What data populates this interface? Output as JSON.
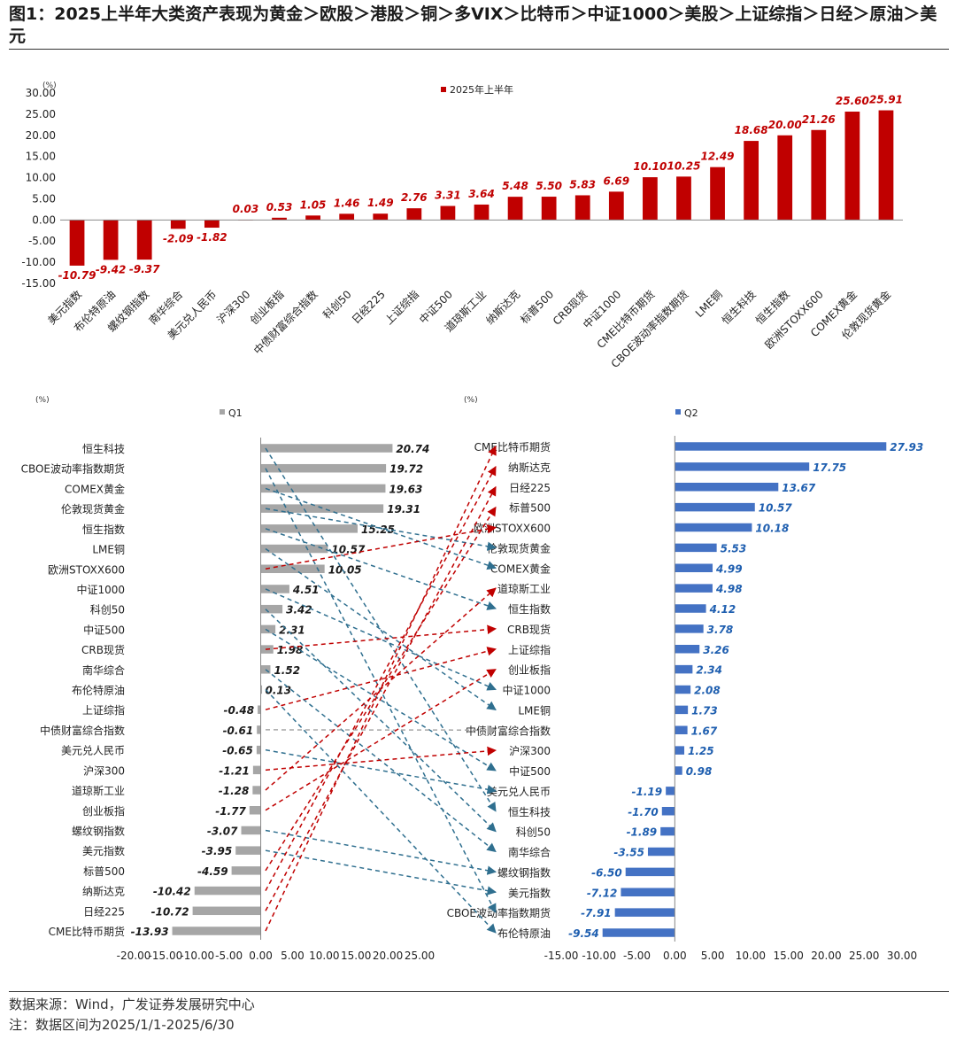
{
  "figure": {
    "title": "图1：2025上半年大类资产表现为黄金＞欧股＞港股＞铜＞多VIX＞比特币＞中证1000＞美股＞上证综指＞日经＞原油＞美元",
    "source": "数据来源：Wind，广发证券发展研究中心",
    "note": "注：数据区间为2025/1/1-2025/6/30"
  },
  "chart_data": [
    {
      "type": "bar",
      "unit": "(%)",
      "categories": [
        "美元指数",
        "布伦特原油",
        "螺纹钢指数",
        "南华综合",
        "美元兑人民币",
        "沪深300",
        "创业板指",
        "中债财富综合指数",
        "科创50",
        "日经225",
        "上证综指",
        "中证500",
        "道琼斯工业",
        "纳斯达克",
        "标普500",
        "CRB现货",
        "中证1000",
        "CME比特币期货",
        "CBOE波动率指数期货",
        "LME铜",
        "恒生科技",
        "恒生指数",
        "欧洲STOXX600",
        "COMEX黄金",
        "伦敦现货黄金"
      ],
      "series": [
        {
          "name": "2025年上半年",
          "color": "#c00000",
          "values": [
            -10.79,
            -9.42,
            -9.37,
            -2.09,
            -1.82,
            0.03,
            0.53,
            1.05,
            1.46,
            1.49,
            2.76,
            3.31,
            3.64,
            5.48,
            5.5,
            5.83,
            6.69,
            10.1,
            10.25,
            12.49,
            18.68,
            20.0,
            21.26,
            25.6,
            25.91
          ]
        }
      ],
      "y_ticks": [
        "30.00",
        "25.00",
        "20.00",
        "15.00",
        "10.00",
        "5.00",
        "0.00",
        "-5.00",
        "-10.00",
        "-15.00"
      ],
      "ylim": [
        -15,
        30
      ],
      "legend_position": "top-center"
    },
    {
      "type": "bar",
      "orientation": "horizontal",
      "unit": "(%)",
      "categories": [
        "恒生科技",
        "CBOE波动率指数期货",
        "COMEX黄金",
        "伦敦现货黄金",
        "恒生指数",
        "LME铜",
        "欧洲STOXX600",
        "中证1000",
        "科创50",
        "中证500",
        "CRB现货",
        "南华综合",
        "布伦特原油",
        "上证综指",
        "中债财富综合指数",
        "美元兑人民币",
        "沪深300",
        "道琼斯工业",
        "创业板指",
        "螺纹钢指数",
        "美元指数",
        "标普500",
        "纳斯达克",
        "日经225",
        "CME比特币期货"
      ],
      "series": [
        {
          "name": "Q1",
          "color": "#a6a6a6",
          "values": [
            20.74,
            19.72,
            19.63,
            19.31,
            15.25,
            10.57,
            10.05,
            4.51,
            3.42,
            2.31,
            1.98,
            1.52,
            0.13,
            -0.48,
            -0.61,
            -0.65,
            -1.21,
            -1.28,
            -1.77,
            -3.07,
            -3.95,
            -4.59,
            -10.42,
            -10.72,
            -13.93
          ]
        }
      ],
      "x_ticks": [
        "-20.00",
        "-15.00",
        "-10.00",
        "-5.00",
        "0.00",
        "5.00",
        "10.00",
        "15.00",
        "20.00",
        "25.00"
      ],
      "xlim": [
        -20,
        25
      ],
      "legend_position": "top"
    },
    {
      "type": "bar",
      "orientation": "horizontal",
      "unit": "(%)",
      "categories": [
        "CME比特币期货",
        "纳斯达克",
        "日经225",
        "标普500",
        "欧洲STOXX600",
        "伦敦现货黄金",
        "COMEX黄金",
        "道琼斯工业",
        "恒生指数",
        "CRB现货",
        "上证综指",
        "创业板指",
        "中证1000",
        "LME铜",
        "中债财富综合指数",
        "沪深300",
        "中证500",
        "美元兑人民币",
        "恒生科技",
        "科创50",
        "南华综合",
        "螺纹钢指数",
        "美元指数",
        "CBOE波动率指数期货",
        "布伦特原油"
      ],
      "series": [
        {
          "name": "Q2",
          "color": "#4472c4",
          "values": [
            27.93,
            17.75,
            13.67,
            10.57,
            10.18,
            5.53,
            4.99,
            4.98,
            4.12,
            3.78,
            3.26,
            2.34,
            2.08,
            1.73,
            1.67,
            1.25,
            0.98,
            -1.19,
            -1.7,
            -1.89,
            -3.55,
            -6.5,
            -7.12,
            -7.91,
            -9.54
          ]
        }
      ],
      "x_ticks": [
        "-15.00",
        "-10.00",
        "-5.00",
        "0.00",
        "5.00",
        "10.00",
        "15.00",
        "20.00",
        "25.00",
        "30.00"
      ],
      "xlim": [
        -15,
        30
      ],
      "legend_position": "top"
    }
  ],
  "colors": {
    "h1": "#c00000",
    "q1": "#a6a6a6",
    "q2": "#4472c4",
    "arrow_up": "#c00000",
    "arrow_down": "#2f6f8f",
    "arrow_flat": "#a6a6a6"
  }
}
